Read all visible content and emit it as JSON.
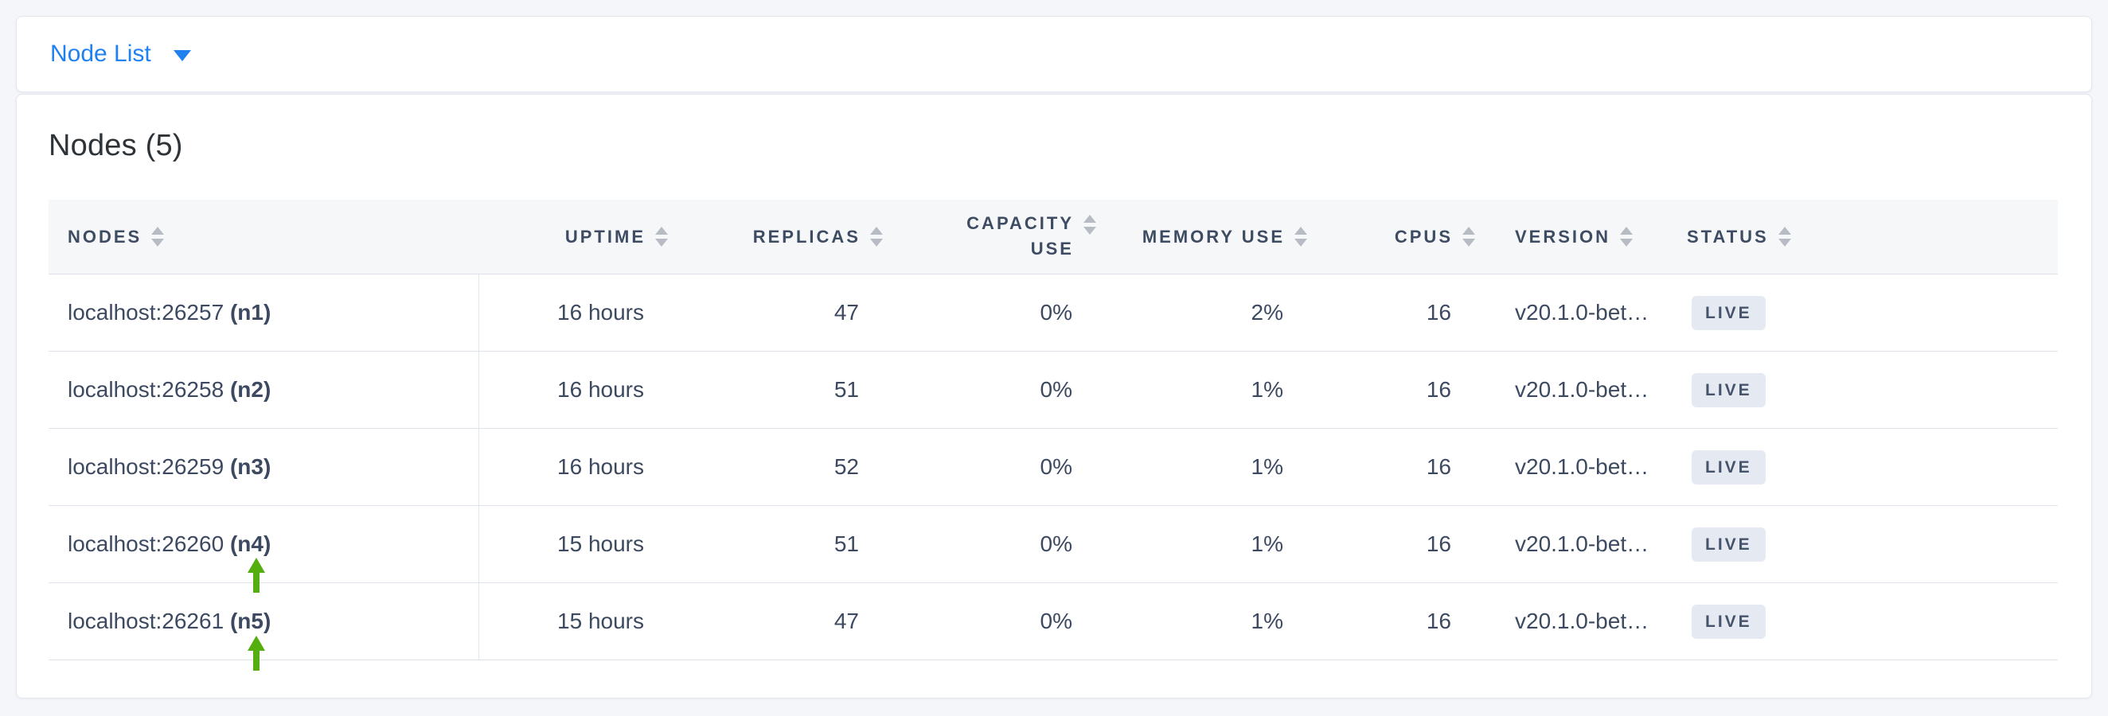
{
  "topbar": {
    "dropdown_label": "Node List"
  },
  "main": {
    "title": "Nodes (5)",
    "table": {
      "columns": [
        {
          "key": "node",
          "label": "NODES",
          "align": "left"
        },
        {
          "key": "uptime",
          "label": "UPTIME",
          "align": "right"
        },
        {
          "key": "replicas",
          "label": "REPLICAS",
          "align": "right"
        },
        {
          "key": "capacity_use",
          "label": "CAPACITY USE",
          "align": "right",
          "two_line": true
        },
        {
          "key": "memory_use",
          "label": "MEMORY USE",
          "align": "right"
        },
        {
          "key": "cpus",
          "label": "CPUS",
          "align": "right"
        },
        {
          "key": "version",
          "label": "VERSION",
          "align": "left"
        },
        {
          "key": "status",
          "label": "STATUS",
          "align": "left"
        }
      ],
      "rows": [
        {
          "node_address": "localhost:26257",
          "node_id": "(n1)",
          "uptime": "16 hours",
          "replicas": "47",
          "capacity_use": "0%",
          "memory_use": "2%",
          "cpus": "16",
          "version": "v20.1.0-bet…",
          "status": "LIVE",
          "highlight_arrow": false
        },
        {
          "node_address": "localhost:26258",
          "node_id": "(n2)",
          "uptime": "16 hours",
          "replicas": "51",
          "capacity_use": "0%",
          "memory_use": "1%",
          "cpus": "16",
          "version": "v20.1.0-bet…",
          "status": "LIVE",
          "highlight_arrow": false
        },
        {
          "node_address": "localhost:26259",
          "node_id": "(n3)",
          "uptime": "16 hours",
          "replicas": "52",
          "capacity_use": "0%",
          "memory_use": "1%",
          "cpus": "16",
          "version": "v20.1.0-bet…",
          "status": "LIVE",
          "highlight_arrow": false
        },
        {
          "node_address": "localhost:26260",
          "node_id": "(n4)",
          "uptime": "15 hours",
          "replicas": "51",
          "capacity_use": "0%",
          "memory_use": "1%",
          "cpus": "16",
          "version": "v20.1.0-bet…",
          "status": "LIVE",
          "highlight_arrow": true
        },
        {
          "node_address": "localhost:26261",
          "node_id": "(n5)",
          "uptime": "15 hours",
          "replicas": "47",
          "capacity_use": "0%",
          "memory_use": "1%",
          "cpus": "16",
          "version": "v20.1.0-bet…",
          "status": "LIVE",
          "highlight_arrow": true
        }
      ]
    }
  },
  "icons": {
    "dropdown_caret": "chevron-down-icon",
    "column_sort": "sort-carets-icon",
    "row_annotation": "green-up-arrow-icon"
  },
  "colors": {
    "accent_blue": "#1f80f0",
    "arrow_green": "#54ae0e",
    "badge_bg": "#e5eaf2",
    "badge_text": "#45536b"
  }
}
